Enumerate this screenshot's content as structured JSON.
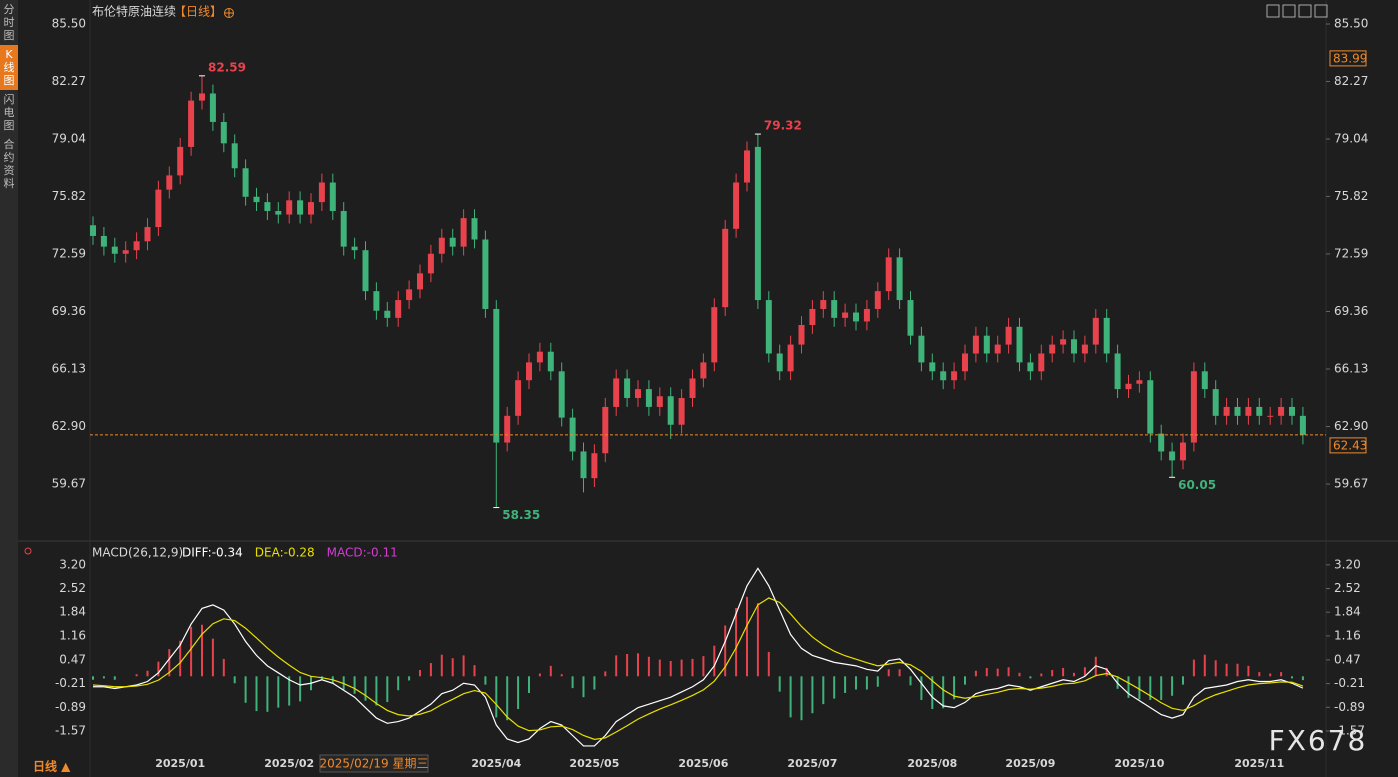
{
  "ui": {
    "tabs": [
      "分时图",
      "K线图",
      "闪电图",
      "合约资料"
    ],
    "period_button": "日线 ▲",
    "watermark": "FX678",
    "cursor_label": "2025/02/19 星期三"
  },
  "chart_data": [
    {
      "type": "candlestick",
      "title": "布伦特原油连续",
      "period": "【日线】",
      "up_color": "#e8424d",
      "down_color": "#3fb37a",
      "ylim": [
        57.09,
        85.5
      ],
      "yticks": [
        {
          "value": 85.5,
          "label": "85.50"
        },
        82.27,
        79.04,
        75.82,
        72.59,
        69.36,
        66.13,
        {
          "value": 62.9,
          "label": "62.90"
        },
        59.67
      ],
      "cursor_price": 83.99,
      "open": [
        74.2,
        73.6,
        73.0,
        72.6,
        72.8,
        73.3,
        74.1,
        76.2,
        77.0,
        78.6,
        81.2,
        81.6,
        80.0,
        78.8,
        77.4,
        75.8,
        75.5,
        75.0,
        74.8,
        75.6,
        74.8,
        75.5,
        76.6,
        75.0,
        73.0,
        72.8,
        70.5,
        69.4,
        69.0,
        70.0,
        70.6,
        71.5,
        72.6,
        73.5,
        73.0,
        74.6,
        73.4,
        69.5,
        62.0,
        63.5,
        65.5,
        66.5,
        67.1,
        66.0,
        63.4,
        61.5,
        60.0,
        61.4,
        64.0,
        65.6,
        64.5,
        65.0,
        64.0,
        64.6,
        63.0,
        64.5,
        65.6,
        66.5,
        69.6,
        74.0,
        76.6,
        78.6,
        70.0,
        67.0,
        66.0,
        67.5,
        68.6,
        69.5,
        70.0,
        69.0,
        69.3,
        68.8,
        69.5,
        70.5,
        72.4,
        70.0,
        68.0,
        66.5,
        66.0,
        65.5,
        66.0,
        67.0,
        68.0,
        67.0,
        67.5,
        68.5,
        66.5,
        66.0,
        67.0,
        67.5,
        67.8,
        67.0,
        67.5,
        69.0,
        67.0,
        65.0,
        65.3,
        65.5,
        62.5,
        61.5,
        61.0,
        62.0,
        66.0,
        65.0,
        63.5,
        64.0,
        63.5,
        64.0,
        63.5,
        63.5,
        64.0,
        63.5
      ],
      "high": [
        74.7,
        74.1,
        73.5,
        73.3,
        73.8,
        74.6,
        76.7,
        77.5,
        79.1,
        81.7,
        82.59,
        82.1,
        80.5,
        79.3,
        77.9,
        76.3,
        76.0,
        75.5,
        76.1,
        76.1,
        76.0,
        77.1,
        77.1,
        75.5,
        73.5,
        73.3,
        71.0,
        69.9,
        70.5,
        71.1,
        72.0,
        73.1,
        74.0,
        74.0,
        75.1,
        75.1,
        73.9,
        70.0,
        64.0,
        66.0,
        67.0,
        67.6,
        67.6,
        66.5,
        63.9,
        62.0,
        61.9,
        64.5,
        66.1,
        66.1,
        65.5,
        65.5,
        65.1,
        65.1,
        65.0,
        66.1,
        67.0,
        70.1,
        74.5,
        77.1,
        78.9,
        79.32,
        70.5,
        67.5,
        68.0,
        69.1,
        70.0,
        70.5,
        70.5,
        69.8,
        69.8,
        70.0,
        71.0,
        72.9,
        72.9,
        70.5,
        68.5,
        67.0,
        66.5,
        66.5,
        67.5,
        68.5,
        68.5,
        68.0,
        69.0,
        69.0,
        67.0,
        67.5,
        68.0,
        68.3,
        68.3,
        68.0,
        69.5,
        69.5,
        67.5,
        65.8,
        66.0,
        66.0,
        63.0,
        62.0,
        62.5,
        66.5,
        66.5,
        65.5,
        64.5,
        64.5,
        64.5,
        64.5,
        64.0,
        64.5,
        64.5,
        64.0
      ],
      "low": [
        73.1,
        72.5,
        72.1,
        72.1,
        72.3,
        72.8,
        73.6,
        75.7,
        76.5,
        78.1,
        80.7,
        79.5,
        78.3,
        76.9,
        75.3,
        75.0,
        74.5,
        74.3,
        74.3,
        74.3,
        74.3,
        75.0,
        74.5,
        72.5,
        72.3,
        70.0,
        68.9,
        68.5,
        68.5,
        69.5,
        70.1,
        71.0,
        72.1,
        72.5,
        72.5,
        72.9,
        69.0,
        58.35,
        61.5,
        63.0,
        65.0,
        66.0,
        65.5,
        62.9,
        61.0,
        59.2,
        59.5,
        60.9,
        63.5,
        64.0,
        64.0,
        63.5,
        63.5,
        62.2,
        62.5,
        64.0,
        65.1,
        66.0,
        69.1,
        73.5,
        76.1,
        69.5,
        66.5,
        65.5,
        65.5,
        67.0,
        68.1,
        69.0,
        68.5,
        68.5,
        68.3,
        68.3,
        69.0,
        70.0,
        69.5,
        67.5,
        66.0,
        65.5,
        65.0,
        65.0,
        65.5,
        66.5,
        66.5,
        66.5,
        67.0,
        66.0,
        65.5,
        65.5,
        66.5,
        67.0,
        66.5,
        66.5,
        67.0,
        66.5,
        64.5,
        64.5,
        64.8,
        62.0,
        61.0,
        60.05,
        60.5,
        61.5,
        64.5,
        63.0,
        63.0,
        63.0,
        63.0,
        63.0,
        63.0,
        63.0,
        63.0,
        61.9
      ],
      "close": [
        73.6,
        73.0,
        72.6,
        72.8,
        73.3,
        74.1,
        76.2,
        77.0,
        78.6,
        81.2,
        81.6,
        80.0,
        78.8,
        77.4,
        75.8,
        75.5,
        75.0,
        74.8,
        75.6,
        74.8,
        75.5,
        76.6,
        75.0,
        73.0,
        72.8,
        70.5,
        69.4,
        69.0,
        70.0,
        70.6,
        71.5,
        72.6,
        73.5,
        73.0,
        74.6,
        73.4,
        69.5,
        62.0,
        63.5,
        65.5,
        66.5,
        67.1,
        66.0,
        63.4,
        61.5,
        60.0,
        61.4,
        64.0,
        65.6,
        64.5,
        65.0,
        64.0,
        64.6,
        63.0,
        64.5,
        65.6,
        66.5,
        69.6,
        74.0,
        76.6,
        78.4,
        70.0,
        67.0,
        66.0,
        67.5,
        68.6,
        69.5,
        70.0,
        69.0,
        69.3,
        68.8,
        69.5,
        70.5,
        72.4,
        70.0,
        68.0,
        66.5,
        66.0,
        65.5,
        66.0,
        67.0,
        68.0,
        67.0,
        67.5,
        68.5,
        66.5,
        66.0,
        67.0,
        67.5,
        67.8,
        67.0,
        67.5,
        69.0,
        67.0,
        65.0,
        65.3,
        65.5,
        62.5,
        61.5,
        61.0,
        62.0,
        66.0,
        65.0,
        63.5,
        64.0,
        63.5,
        64.0,
        63.5,
        63.5,
        64.0,
        63.5,
        62.43
      ]
    },
    {
      "type": "macd",
      "title": "MACD(26,12,9)",
      "ylim": [
        -2.26,
        3.77
      ],
      "yticks": [
        {
          "value": 3.2,
          "label": "3.20"
        },
        2.52,
        1.84,
        1.16,
        0.47,
        -0.21,
        -0.89,
        -1.57
      ],
      "categories": [
        null,
        null,
        null,
        null,
        null,
        null,
        null,
        null,
        "2025/01",
        null,
        null,
        null,
        null,
        null,
        null,
        null,
        null,
        null,
        "2025/02",
        null,
        null,
        null,
        null,
        null,
        null,
        null,
        null,
        null,
        null,
        null,
        null,
        null,
        null,
        null,
        null,
        null,
        null,
        "2025/04",
        null,
        null,
        null,
        null,
        null,
        null,
        null,
        null,
        "2025/05",
        null,
        null,
        null,
        null,
        null,
        null,
        null,
        null,
        null,
        "2025/06",
        null,
        null,
        null,
        null,
        null,
        null,
        null,
        null,
        null,
        "2025/07",
        null,
        null,
        null,
        null,
        null,
        null,
        null,
        null,
        null,
        null,
        "2025/08",
        null,
        null,
        null,
        null,
        null,
        null,
        null,
        null,
        "2025/09",
        null,
        null,
        null,
        null,
        null,
        null,
        null,
        null,
        null,
        "2025/10",
        null,
        null,
        null,
        null,
        null,
        null,
        null,
        null,
        null,
        null,
        "2025/11",
        null,
        null,
        null,
        null
      ],
      "series": [
        {
          "name": "DIFF:-0.34",
          "color": "#ffffff",
          "values": [
            -0.3,
            -0.3,
            -0.35,
            -0.3,
            -0.25,
            -0.15,
            0.1,
            0.5,
            0.9,
            1.5,
            1.95,
            2.05,
            1.9,
            1.5,
            1.0,
            0.6,
            0.3,
            0.1,
            -0.1,
            -0.25,
            -0.2,
            -0.1,
            -0.2,
            -0.4,
            -0.6,
            -0.9,
            -1.2,
            -1.35,
            -1.3,
            -1.2,
            -1.0,
            -0.8,
            -0.5,
            -0.4,
            -0.2,
            -0.25,
            -0.6,
            -1.4,
            -1.8,
            -1.9,
            -1.8,
            -1.5,
            -1.3,
            -1.4,
            -1.7,
            -2.0,
            -2.0,
            -1.7,
            -1.3,
            -1.1,
            -0.9,
            -0.8,
            -0.7,
            -0.6,
            -0.45,
            -0.3,
            -0.1,
            0.3,
            1.0,
            1.8,
            2.6,
            3.1,
            2.6,
            1.9,
            1.2,
            0.8,
            0.6,
            0.5,
            0.4,
            0.35,
            0.3,
            0.2,
            0.15,
            0.45,
            0.5,
            0.2,
            -0.2,
            -0.6,
            -0.85,
            -0.9,
            -0.75,
            -0.5,
            -0.4,
            -0.35,
            -0.25,
            -0.3,
            -0.4,
            -0.3,
            -0.2,
            -0.1,
            -0.15,
            0.0,
            0.3,
            0.2,
            -0.2,
            -0.5,
            -0.7,
            -0.9,
            -1.1,
            -1.2,
            -1.1,
            -0.6,
            -0.35,
            -0.3,
            -0.25,
            -0.15,
            -0.1,
            -0.15,
            -0.15,
            -0.1,
            -0.2,
            -0.34
          ]
        },
        {
          "name": "DEA:-0.28",
          "color": "#e8e000",
          "values": [
            -0.25,
            -0.27,
            -0.3,
            -0.3,
            -0.28,
            -0.23,
            -0.11,
            0.11,
            0.39,
            0.79,
            1.21,
            1.51,
            1.65,
            1.6,
            1.38,
            1.1,
            0.81,
            0.55,
            0.32,
            0.11,
            0.0,
            -0.04,
            -0.1,
            -0.21,
            -0.35,
            -0.55,
            -0.78,
            -0.98,
            -1.1,
            -1.14,
            -1.09,
            -0.99,
            -0.81,
            -0.66,
            -0.5,
            -0.41,
            -0.48,
            -0.81,
            -1.17,
            -1.43,
            -1.56,
            -1.54,
            -1.45,
            -1.43,
            -1.53,
            -1.7,
            -1.81,
            -1.77,
            -1.6,
            -1.42,
            -1.23,
            -1.08,
            -0.94,
            -0.82,
            -0.69,
            -0.55,
            -0.39,
            -0.14,
            0.27,
            0.82,
            1.46,
            2.05,
            2.25,
            2.12,
            1.79,
            1.43,
            1.13,
            0.9,
            0.72,
            0.59,
            0.49,
            0.39,
            0.3,
            0.35,
            0.4,
            0.33,
            0.14,
            -0.13,
            -0.39,
            -0.57,
            -0.63,
            -0.58,
            -0.52,
            -0.46,
            -0.38,
            -0.35,
            -0.37,
            -0.34,
            -0.29,
            -0.22,
            -0.2,
            -0.13,
            0.02,
            0.08,
            -0.02,
            -0.19,
            -0.37,
            -0.56,
            -0.76,
            -0.92,
            -0.98,
            -0.84,
            -0.66,
            -0.53,
            -0.43,
            -0.33,
            -0.25,
            -0.21,
            -0.19,
            -0.16,
            -0.17,
            -0.28
          ]
        },
        {
          "name": "MACD:-0.11",
          "color": "#d33bd3",
          "type": "bar",
          "up_color": "#e8424d",
          "down_color": "#3fb37a",
          "values": [
            -0.1,
            -0.06,
            -0.1,
            0,
            0.06,
            0.16,
            0.42,
            0.78,
            1.02,
            1.42,
            1.48,
            1.08,
            0.5,
            -0.2,
            -0.76,
            -1.0,
            -1.02,
            -0.9,
            -0.84,
            -0.72,
            -0.4,
            -0.12,
            -0.2,
            -0.38,
            -0.5,
            -0.7,
            -0.84,
            -0.74,
            -0.4,
            -0.12,
            0.18,
            0.38,
            0.62,
            0.52,
            0.6,
            0.32,
            -0.24,
            -1.18,
            -1.26,
            -0.94,
            -0.48,
            0.08,
            0.3,
            0.06,
            -0.34,
            -0.6,
            -0.38,
            0.14,
            0.6,
            0.64,
            0.66,
            0.56,
            0.48,
            0.44,
            0.48,
            0.5,
            0.58,
            0.88,
            1.46,
            1.96,
            2.28,
            2.1,
            0.7,
            -0.44,
            -1.18,
            -1.26,
            -1.06,
            -0.8,
            -0.64,
            -0.48,
            -0.38,
            -0.38,
            -0.3,
            0.2,
            0.2,
            -0.26,
            -0.68,
            -0.94,
            -0.92,
            -0.66,
            -0.24,
            0.16,
            0.24,
            0.22,
            0.26,
            0.1,
            -0.06,
            0.08,
            0.18,
            0.24,
            0.1,
            0.26,
            0.56,
            0.24,
            -0.36,
            -0.62,
            -0.66,
            -0.68,
            -0.68,
            -0.56,
            -0.24,
            0.48,
            0.62,
            0.46,
            0.36,
            0.36,
            0.3,
            0.12,
            0.08,
            0.12,
            -0.06,
            -0.11
          ]
        }
      ]
    }
  ]
}
